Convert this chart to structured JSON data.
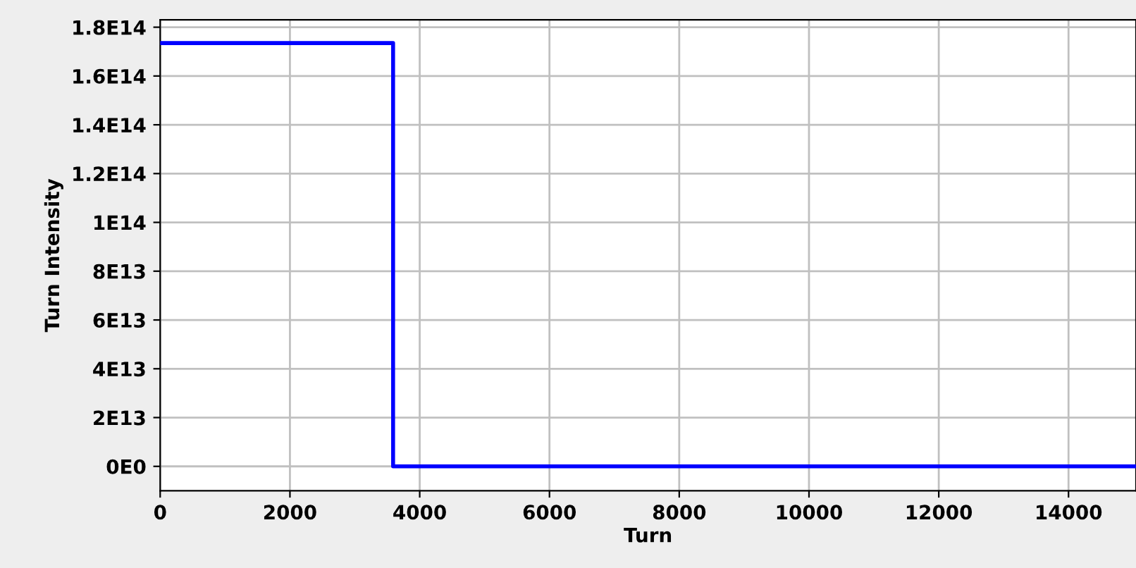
{
  "chart_data": {
    "type": "step",
    "xlabel": "Turn",
    "ylabel": "Turn Intensity",
    "x": [
      0,
      3590,
      15040
    ],
    "series": [
      {
        "color": "#0000ff",
        "values": [
          173500000000000.0,
          0,
          0
        ]
      }
    ],
    "xlim": [
      0,
      15040
    ],
    "xticks": [
      0,
      2000,
      4000,
      6000,
      8000,
      10000,
      12000,
      14000
    ],
    "ylim": [
      -10000000000000.0,
      183000000000000.0
    ],
    "yticks": [
      {
        "value": 0,
        "label": "0E0"
      },
      {
        "value": 20000000000000.0,
        "label": "2E13"
      },
      {
        "value": 40000000000000.0,
        "label": "4E13"
      },
      {
        "value": 60000000000000.0,
        "label": "6E13"
      },
      {
        "value": 80000000000000.0,
        "label": "8E13"
      },
      {
        "value": 100000000000000.0,
        "label": "1E14"
      },
      {
        "value": 120000000000000.0,
        "label": "1.2E14"
      },
      {
        "value": 140000000000000.0,
        "label": "1.4E14"
      },
      {
        "value": 160000000000000.0,
        "label": "1.6E14"
      },
      {
        "value": 180000000000000.0,
        "label": "1.8E14"
      }
    ],
    "grid": true,
    "marker": "none",
    "line_style": "solid"
  }
}
